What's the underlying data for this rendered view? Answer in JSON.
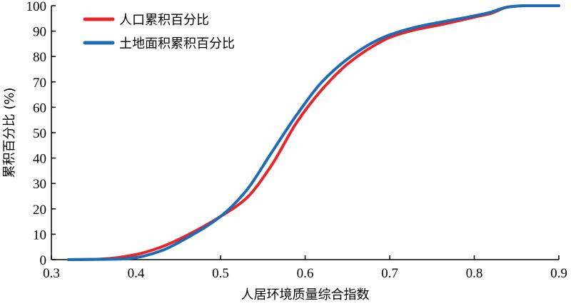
{
  "chart_data": {
    "type": "line",
    "title": "",
    "xlabel": "人居环境质量综合指数",
    "ylabel": "累积百分比 (%)",
    "xlim": [
      0.3,
      0.9
    ],
    "ylim": [
      0,
      100
    ],
    "x_ticks": [
      "0.3",
      "0.4",
      "0.5",
      "0.6",
      "0.7",
      "0.8",
      "0.9"
    ],
    "y_ticks": [
      "0",
      "10",
      "20",
      "30",
      "40",
      "50",
      "60",
      "70",
      "80",
      "90",
      "100"
    ],
    "grid": false,
    "legend_position": "top-left",
    "series": [
      {
        "name": "人口累积百分比",
        "color": "#e5262b",
        "points": [
          [
            0.32,
            0
          ],
          [
            0.35,
            0.1
          ],
          [
            0.37,
            0.5
          ],
          [
            0.4,
            2
          ],
          [
            0.43,
            5
          ],
          [
            0.46,
            9.5
          ],
          [
            0.5,
            17
          ],
          [
            0.53,
            24
          ],
          [
            0.56,
            37
          ],
          [
            0.59,
            54
          ],
          [
            0.62,
            67
          ],
          [
            0.65,
            77
          ],
          [
            0.68,
            84
          ],
          [
            0.7,
            87.5
          ],
          [
            0.73,
            90.5
          ],
          [
            0.76,
            92.5
          ],
          [
            0.8,
            95.5
          ],
          [
            0.82,
            97
          ],
          [
            0.84,
            99.5
          ],
          [
            0.86,
            100
          ],
          [
            0.9,
            100
          ]
        ]
      },
      {
        "name": "土地面积累积百分比",
        "color": "#1f6cb6",
        "points": [
          [
            0.32,
            0
          ],
          [
            0.36,
            0.1
          ],
          [
            0.38,
            0.2
          ],
          [
            0.4,
            0.8
          ],
          [
            0.43,
            3.5
          ],
          [
            0.46,
            8.5
          ],
          [
            0.5,
            17
          ],
          [
            0.53,
            27
          ],
          [
            0.56,
            42
          ],
          [
            0.59,
            57
          ],
          [
            0.62,
            70
          ],
          [
            0.65,
            79
          ],
          [
            0.68,
            85.5
          ],
          [
            0.7,
            88.5
          ],
          [
            0.73,
            91.5
          ],
          [
            0.76,
            93.5
          ],
          [
            0.8,
            96
          ],
          [
            0.82,
            97.5
          ],
          [
            0.84,
            99.5
          ],
          [
            0.86,
            100
          ],
          [
            0.9,
            100
          ]
        ]
      }
    ]
  }
}
